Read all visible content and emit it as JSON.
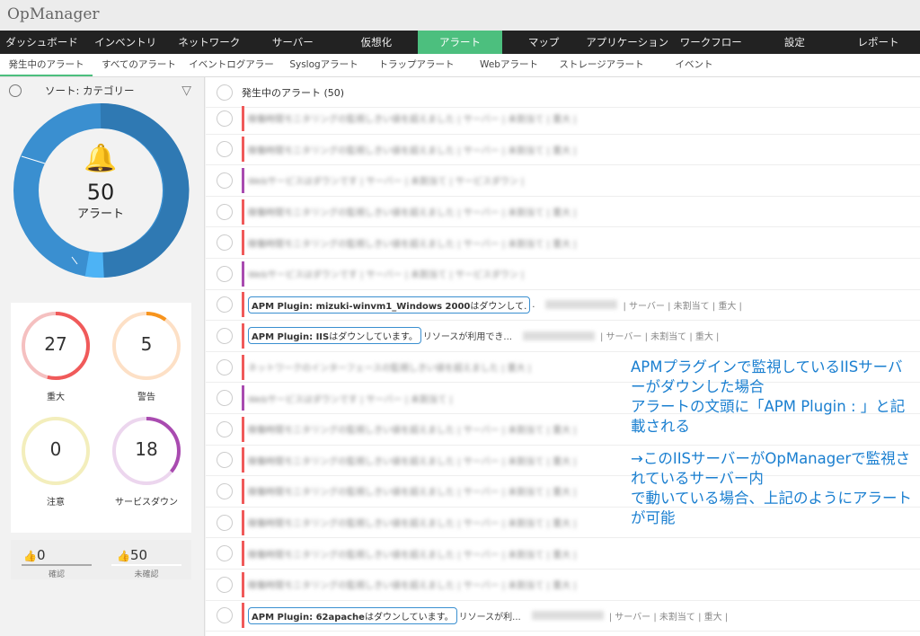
{
  "app_title": "OpManager",
  "nav": [
    "ダッシュボード",
    "インベントリ",
    "ネットワーク",
    "サーバー",
    "仮想化",
    "アラート",
    "マップ",
    "アプリケーション",
    "ワークフロー",
    "設定",
    "レポート"
  ],
  "subtabs": [
    "発生中のアラート",
    "すべてのアラート",
    "イベントログアラート",
    "Syslogアラート",
    "トラップアラート",
    "Webアラート",
    "ストレージアラート",
    "イベント"
  ],
  "sidebar": {
    "sort_label": "ソート: カテゴリー",
    "total": "50",
    "total_label": "アラート",
    "severity": [
      {
        "count": "27",
        "label": "重大",
        "color": "#f05a5a",
        "fraction": 0.54
      },
      {
        "count": "5",
        "label": "警告",
        "color": "#f7941d",
        "fraction": 0.1
      },
      {
        "count": "0",
        "label": "注意",
        "color": "#e8d64a",
        "fraction": 0
      },
      {
        "count": "18",
        "label": "サービスダウン",
        "color": "#a94bb0",
        "fraction": 0.36
      }
    ],
    "acknowledged": {
      "count": "0",
      "label": "確認"
    },
    "unacknowledged": {
      "count": "50",
      "label": "未確認"
    }
  },
  "main": {
    "header": "発生中のアラート (50)",
    "rows": [
      {
        "color": "#f05a5a",
        "blurred": "稼働時間モニタリングの監視しきい値を超えました | サーバー | 未割当て | 重大 |"
      },
      {
        "color": "#f05a5a",
        "blurred": "稼働時間モニタリングの監視しきい値を超えました | サーバー | 未割当て | 重大 |"
      },
      {
        "color": "#a94bb0",
        "blurred": "Webサービスはダウンです | サーバー | 未割当て | サービスダウン |"
      },
      {
        "color": "#f05a5a",
        "blurred": "稼働時間モニタリングの監視しきい値を超えました | サーバー | 未割当て | 重大 |"
      },
      {
        "color": "#f05a5a",
        "blurred": "稼働時間モニタリングの監視しきい値を超えました | サーバー | 未割当て | 重大 |"
      },
      {
        "color": "#a94bb0",
        "blurred": "Webサービスはダウンです | サーバー | 未割当て | サービスダウン |"
      },
      {
        "color": "#f05a5a",
        "apm": "APM Plugin: mizuki-winvm1_Windows 2000",
        "apm_rest": "はダウンして.",
        "rest": ".",
        "tags": "| サーバー | 未割当て | 重大 |"
      },
      {
        "color": "#f05a5a",
        "apm": "APM Plugin: IIS",
        "apm_rest": "はダウンしています。",
        "rest": "リソースが利用でき...",
        "tags": "| サーバー | 未割当て | 重大 |"
      },
      {
        "color": "#f05a5a",
        "blurred": "ネットワークのインターフェースの監視しきい値を超えました | 重大 |"
      },
      {
        "color": "#a94bb0",
        "blurred": "Webサービスはダウンです | サーバー | 未割当て |"
      },
      {
        "color": "#f05a5a",
        "blurred": "稼働時間モニタリングの監視しきい値を超えました | サーバー | 未割当て | 重大 |"
      },
      {
        "color": "#f05a5a",
        "blurred": "稼働時間モニタリングの監視しきい値を超えました | サーバー | 未割当て | 重大 |"
      },
      {
        "color": "#f05a5a",
        "blurred": "稼働時間モニタリングの監視しきい値を超えました | サーバー | 未割当て | 重大 |"
      },
      {
        "color": "#f05a5a",
        "blurred": "稼働時間モニタリングの監視しきい値を超えました | サーバー | 未割当て | 重大 |"
      },
      {
        "color": "#f05a5a",
        "blurred": "稼働時間モニタリングの監視しきい値を超えました | サーバー | 未割当て | 重大 |"
      },
      {
        "color": "#f05a5a",
        "blurred": "稼働時間モニタリングの監視しきい値を超えました | サーバー | 未割当て | 重大 |"
      },
      {
        "color": "#f05a5a",
        "apm": "APM Plugin: 62apache",
        "apm_rest": "はダウンしています。",
        "rest": "リソースが利...",
        "tags": "| サーバー | 未割当て | 重大 |"
      }
    ]
  },
  "annotation": [
    "APMプラグインで監視しているIISサーバーがダウンした場合",
    "アラートの文頭に「APM Plugin : 」と記載される",
    "",
    "→このIISサーバーがOpManagerで監視されているサーバー内",
    "で動いている場合、上記のようにアラートが可能"
  ]
}
